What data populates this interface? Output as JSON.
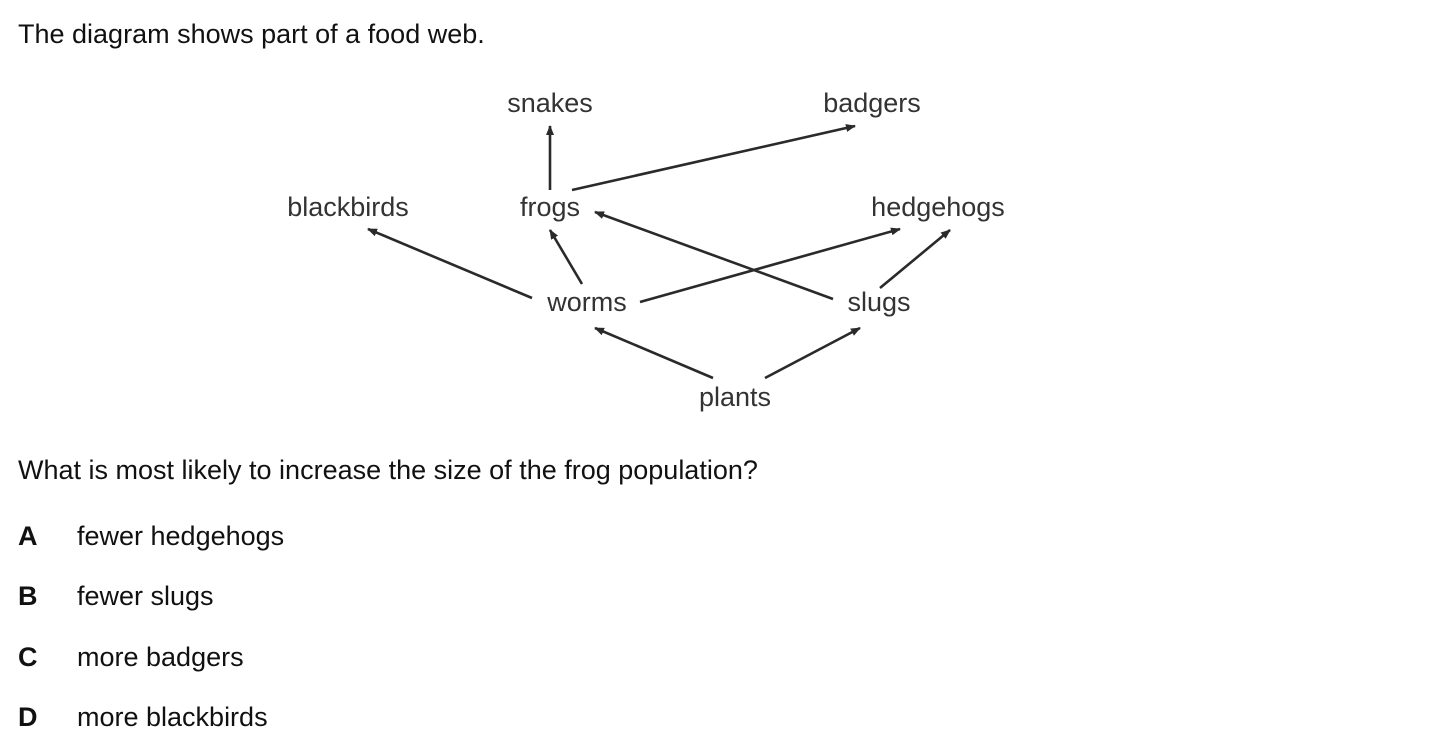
{
  "intro": "The diagram shows part of a food web.",
  "food_web": {
    "organisms": {
      "snakes": "snakes",
      "badgers": "badgers",
      "blackbirds": "blackbirds",
      "frogs": "frogs",
      "hedgehogs": "hedgehogs",
      "worms": "worms",
      "slugs": "slugs",
      "plants": "plants"
    },
    "links": [
      {
        "from": "frogs",
        "to": "snakes"
      },
      {
        "from": "frogs",
        "to": "badgers"
      },
      {
        "from": "worms",
        "to": "blackbirds"
      },
      {
        "from": "worms",
        "to": "frogs"
      },
      {
        "from": "worms",
        "to": "hedgehogs"
      },
      {
        "from": "slugs",
        "to": "frogs"
      },
      {
        "from": "slugs",
        "to": "hedgehogs"
      },
      {
        "from": "plants",
        "to": "worms"
      },
      {
        "from": "plants",
        "to": "slugs"
      }
    ]
  },
  "question": "What is most likely to increase the size of the frog population?",
  "options": [
    {
      "letter": "A",
      "text": "fewer hedgehogs"
    },
    {
      "letter": "B",
      "text": "fewer slugs"
    },
    {
      "letter": "C",
      "text": "more badgers"
    },
    {
      "letter": "D",
      "text": "more blackbirds"
    }
  ]
}
